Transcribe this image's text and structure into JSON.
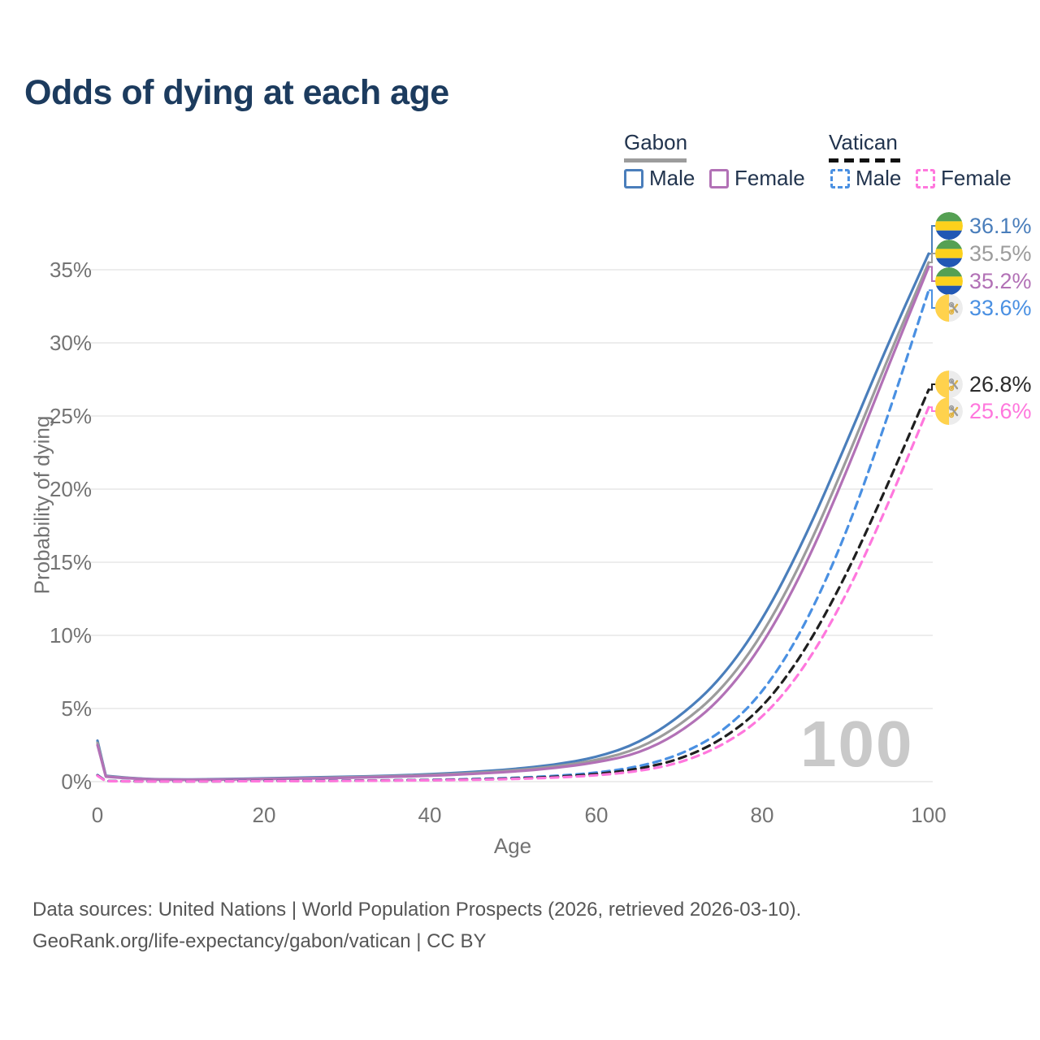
{
  "title": "Odds of dying at each age",
  "legend": {
    "groups": [
      {
        "label": "Gabon",
        "line_style": "solid",
        "line_color": "#9c9c9c"
      },
      {
        "label": "Vatican",
        "line_style": "dashed",
        "line_color": "#1f1f1f"
      }
    ],
    "items": [
      {
        "group": "Gabon",
        "label": "Male",
        "color": "#4a7ebb",
        "style": "solid"
      },
      {
        "group": "Gabon",
        "label": "Female",
        "color": "#b271b6",
        "style": "solid"
      },
      {
        "group": "Vatican",
        "label": "Male",
        "color": "#4a90e2",
        "style": "dashed"
      },
      {
        "group": "Vatican",
        "label": "Female",
        "color": "#ff77dd",
        "style": "dashed"
      }
    ]
  },
  "watermark_age": "100",
  "footer": {
    "line1": "Data sources: United Nations | World Population Prospects (2026, retrieved 2026-03-10).",
    "line2": "GeoRank.org/life-expectancy/gabon/vatican | CC BY"
  },
  "chart_data": {
    "type": "line",
    "title": "Odds of dying at each age",
    "xlabel": "Age",
    "ylabel": "Probability of dying",
    "xlim": [
      0,
      100
    ],
    "ylim_pct": [
      0,
      38
    ],
    "x_ticks": [
      "0",
      "20",
      "40",
      "60",
      "80",
      "100"
    ],
    "y_ticks": [
      "0%",
      "5%",
      "10%",
      "15%",
      "20%",
      "25%",
      "30%",
      "35%"
    ],
    "grid": "horizontal only",
    "legend_position": "top-right",
    "x": [
      0,
      1,
      5,
      10,
      15,
      20,
      25,
      30,
      35,
      40,
      45,
      50,
      55,
      60,
      65,
      70,
      75,
      80,
      85,
      90,
      95,
      100
    ],
    "series": [
      {
        "name": "Gabon Male",
        "country": "Gabon",
        "sex": "Male",
        "color": "#4a7ebb",
        "dashed": false,
        "flag": "gabon",
        "end_label": "36.1%",
        "label_color": "#4a7ebb",
        "values_pct": [
          2.8,
          0.4,
          0.18,
          0.14,
          0.17,
          0.22,
          0.28,
          0.33,
          0.4,
          0.5,
          0.65,
          0.85,
          1.15,
          1.65,
          2.6,
          4.4,
          7.0,
          11.0,
          16.5,
          23.0,
          29.8,
          36.1
        ]
      },
      {
        "name": "Gabon Both sexes",
        "country": "Gabon",
        "sex": "Both",
        "color": "#9c9c9c",
        "dashed": false,
        "flag": "gabon",
        "end_label": "35.5%",
        "label_color": "#9c9c9c",
        "values_pct": [
          2.65,
          0.37,
          0.17,
          0.13,
          0.15,
          0.19,
          0.24,
          0.29,
          0.36,
          0.45,
          0.58,
          0.76,
          1.02,
          1.45,
          2.2,
          3.8,
          6.2,
          10.0,
          15.3,
          21.8,
          28.8,
          35.5
        ]
      },
      {
        "name": "Gabon Female",
        "country": "Gabon",
        "sex": "Female",
        "color": "#b271b6",
        "dashed": false,
        "flag": "gabon",
        "end_label": "35.2%",
        "label_color": "#b271b6",
        "values_pct": [
          2.5,
          0.34,
          0.16,
          0.12,
          0.14,
          0.17,
          0.21,
          0.26,
          0.32,
          0.4,
          0.52,
          0.68,
          0.92,
          1.3,
          1.9,
          3.3,
          5.6,
          9.3,
          14.5,
          21.0,
          28.2,
          35.2
        ]
      },
      {
        "name": "Vatican Male",
        "country": "Vatican",
        "sex": "Male",
        "color": "#4a90e2",
        "dashed": true,
        "flag": "vatican",
        "end_label": "33.6%",
        "label_color": "#4a90e2",
        "values_pct": [
          0.45,
          0.04,
          0.02,
          0.015,
          0.03,
          0.05,
          0.06,
          0.07,
          0.09,
          0.12,
          0.17,
          0.25,
          0.38,
          0.6,
          1.0,
          1.8,
          3.3,
          6.0,
          10.5,
          16.8,
          24.8,
          33.6
        ]
      },
      {
        "name": "Vatican Both sexes",
        "country": "Vatican",
        "sex": "Both",
        "color": "#1f1f1f",
        "dashed": true,
        "flag": "vatican",
        "end_label": "26.8%",
        "label_color": "#2b2b2b",
        "values_pct": [
          0.42,
          0.035,
          0.018,
          0.013,
          0.025,
          0.04,
          0.05,
          0.06,
          0.08,
          0.1,
          0.14,
          0.21,
          0.32,
          0.5,
          0.85,
          1.5,
          2.8,
          5.0,
          8.8,
          14.0,
          20.2,
          26.8
        ]
      },
      {
        "name": "Vatican Female",
        "country": "Vatican",
        "sex": "Female",
        "color": "#ff77dd",
        "dashed": true,
        "flag": "vatican",
        "end_label": "25.6%",
        "label_color": "#ff77dd",
        "values_pct": [
          0.4,
          0.03,
          0.015,
          0.012,
          0.02,
          0.03,
          0.04,
          0.05,
          0.07,
          0.09,
          0.12,
          0.18,
          0.27,
          0.42,
          0.7,
          1.25,
          2.4,
          4.3,
          7.7,
          12.6,
          18.8,
          25.6
        ]
      }
    ]
  }
}
